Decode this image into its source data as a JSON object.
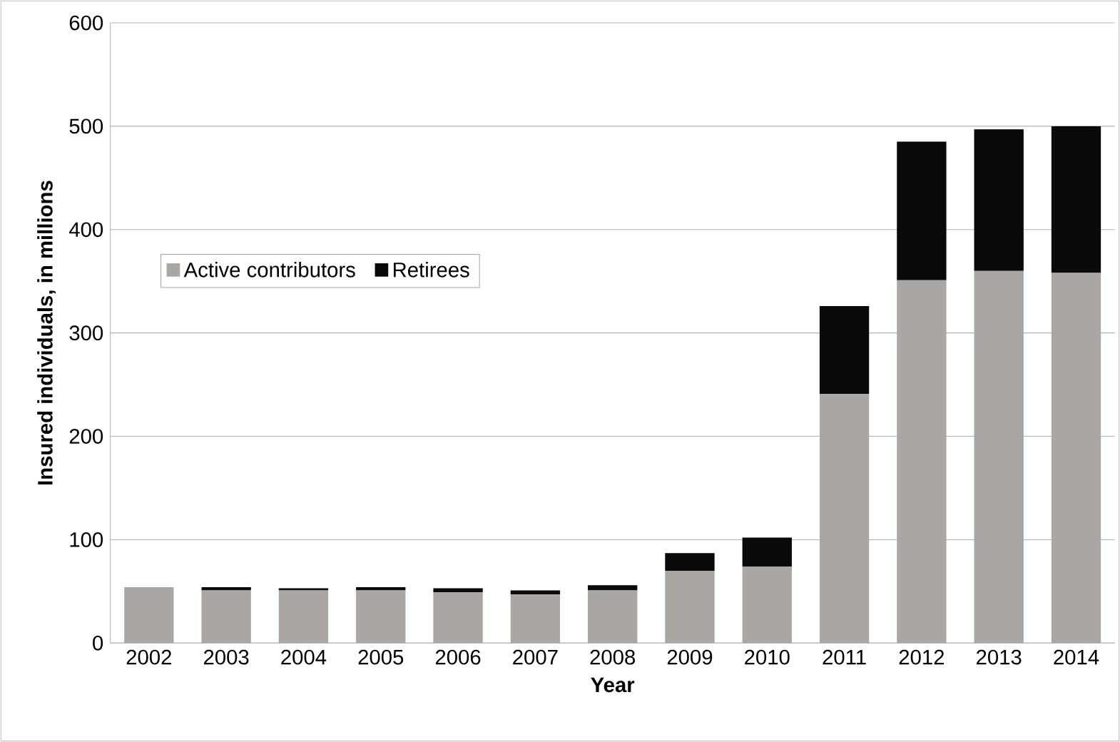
{
  "chart_data": {
    "type": "bar",
    "stacked": true,
    "xlabel": "Year",
    "ylabel": "Insured individuals, in millions",
    "categories": [
      "2002",
      "2003",
      "2004",
      "2005",
      "2006",
      "2007",
      "2008",
      "2009",
      "2010",
      "2011",
      "2012",
      "2013",
      "2014"
    ],
    "series": [
      {
        "name": "Active contributors",
        "color": "#aaa6a4",
        "values": [
          54,
          51,
          51,
          51,
          49,
          47,
          51,
          70,
          74,
          241,
          351,
          360,
          358
        ]
      },
      {
        "name": "Retirees",
        "color": "#0a0a0a",
        "values": [
          0,
          3,
          2,
          3,
          4,
          4,
          5,
          17,
          28,
          85,
          134,
          137,
          142
        ]
      }
    ],
    "ylim": [
      0,
      600
    ],
    "yticks": [
      0,
      100,
      200,
      300,
      400,
      500,
      600
    ],
    "grid": "y",
    "legend": "left"
  }
}
